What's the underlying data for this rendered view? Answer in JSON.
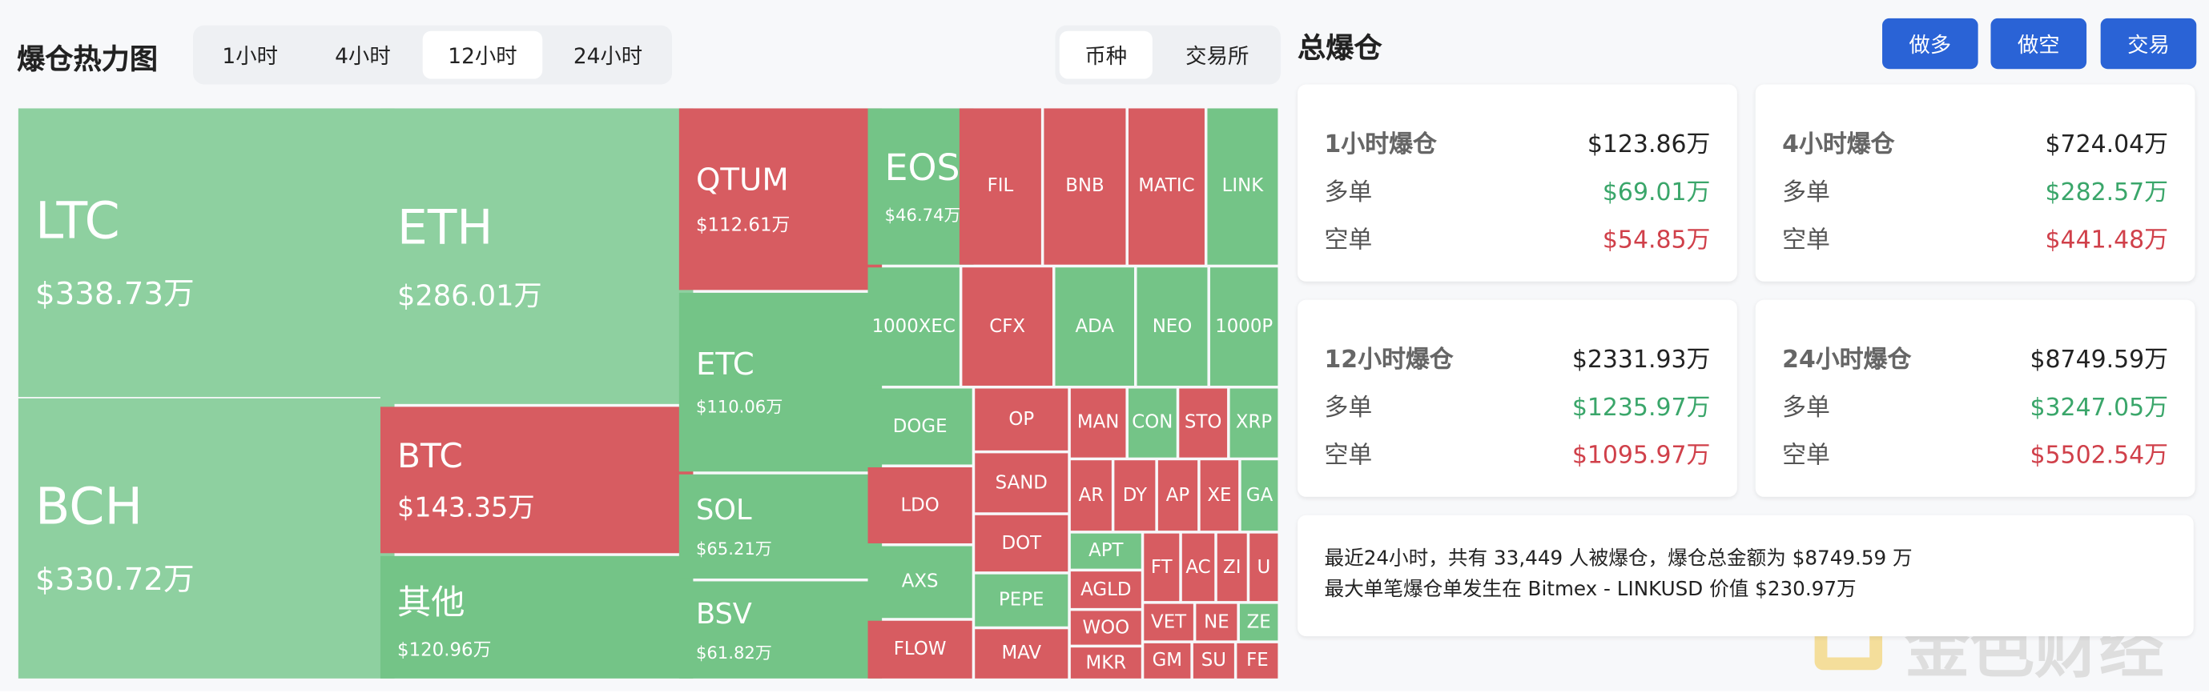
{
  "header": {
    "title": "爆仓热力图",
    "tabs": [
      "1小时",
      "4小时",
      "12小时",
      "24小时"
    ],
    "group_tabs": [
      "币种",
      "交易所"
    ]
  },
  "heatmap": {
    "tiles": [
      {
        "label": "LTC",
        "value": "$338.73万"
      },
      {
        "label": "BCH",
        "value": "$330.72万"
      },
      {
        "label": "ETH",
        "value": "$286.01万"
      },
      {
        "label": "BTC",
        "value": "$143.35万"
      },
      {
        "label": "其他",
        "value": "$120.96万"
      },
      {
        "label": "QTUM",
        "value": "$112.61万"
      },
      {
        "label": "ETC",
        "value": "$110.06万"
      },
      {
        "label": "SOL",
        "value": "$65.21万"
      },
      {
        "label": "BSV",
        "value": "$61.82万"
      },
      {
        "label": "EOS",
        "value": "$46.74万"
      },
      {
        "label": "FIL"
      },
      {
        "label": "BNB"
      },
      {
        "label": "MATIC"
      },
      {
        "label": "LINK"
      },
      {
        "label": "1000XEC"
      },
      {
        "label": "CFX"
      },
      {
        "label": "ADA"
      },
      {
        "label": "NEO"
      },
      {
        "label": "1000P"
      },
      {
        "label": "DOGE"
      },
      {
        "label": "LDO"
      },
      {
        "label": "AXS"
      },
      {
        "label": "FLOW"
      },
      {
        "label": "OP"
      },
      {
        "label": "SAND"
      },
      {
        "label": "DOT"
      },
      {
        "label": "PEPE"
      },
      {
        "label": "MAV"
      },
      {
        "label": "MAN"
      },
      {
        "label": "CON"
      },
      {
        "label": "STO"
      },
      {
        "label": "XRP"
      },
      {
        "label": "AR"
      },
      {
        "label": "DY"
      },
      {
        "label": "AP"
      },
      {
        "label": "XE"
      },
      {
        "label": "GA"
      },
      {
        "label": "APT"
      },
      {
        "label": "AGLD"
      },
      {
        "label": "WOO"
      },
      {
        "label": "MKR"
      },
      {
        "label": "FT"
      },
      {
        "label": "AC"
      },
      {
        "label": "ZI"
      },
      {
        "label": "U"
      },
      {
        "label": "VET"
      },
      {
        "label": "NE"
      },
      {
        "label": "ZE"
      },
      {
        "label": "GM"
      },
      {
        "label": "SU"
      },
      {
        "label": "FE"
      }
    ]
  },
  "summary": {
    "title": "总爆仓",
    "buttons": [
      "做多",
      "做空",
      "交易"
    ],
    "cards": [
      {
        "title": "1小时爆仓",
        "total": "$123.86万",
        "long_label": "多单",
        "long": "$69.01万",
        "short_label": "空单",
        "short": "$54.85万"
      },
      {
        "title": "4小时爆仓",
        "total": "$724.04万",
        "long_label": "多单",
        "long": "$282.57万",
        "short_label": "空单",
        "short": "$441.48万"
      },
      {
        "title": "12小时爆仓",
        "total": "$2331.93万",
        "long_label": "多单",
        "long": "$1235.97万",
        "short_label": "空单",
        "short": "$1095.97万"
      },
      {
        "title": "24小时爆仓",
        "total": "$8749.59万",
        "long_label": "多单",
        "long": "$3247.05万",
        "short_label": "空单",
        "short": "$5502.54万"
      }
    ],
    "notes": [
      "最近24小时，共有 33,449 人被爆仓，爆仓总金额为 $8749.59 万",
      "最大单笔爆仓单发生在 Bitmex - LINKUSD 价值 $230.97万"
    ]
  },
  "watermark": "金色财经"
}
